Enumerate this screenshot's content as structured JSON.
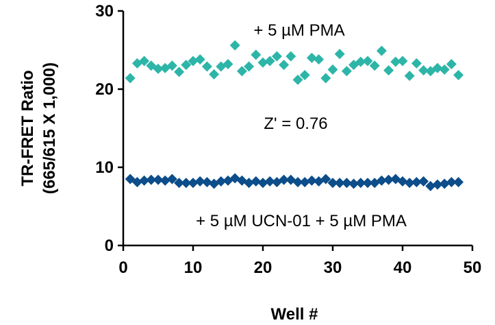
{
  "chart_data": {
    "type": "scatter",
    "xlabel": "Well #",
    "ylabel": [
      "TR-FRET Ratio",
      "(665/615 X 1,000)"
    ],
    "xlim": [
      0,
      50
    ],
    "ylim": [
      0,
      30
    ],
    "xticks": [
      "0",
      "10",
      "20",
      "30",
      "40",
      "50"
    ],
    "yticks": [
      "0",
      "10",
      "20",
      "30"
    ],
    "grid": false,
    "marker": "diamond",
    "annotations": {
      "top_label": "+ 5 µM  PMA",
      "z_prime": "Z' = 0.76",
      "bottom_label": "+ 5 µM UCN-01 + 5 µM  PMA"
    },
    "series": [
      {
        "color": "#2db5a8",
        "x": [
          1,
          2,
          3,
          4,
          5,
          6,
          7,
          8,
          9,
          10,
          11,
          12,
          13,
          14,
          15,
          16,
          17,
          18,
          19,
          20,
          21,
          22,
          23,
          24,
          25,
          26,
          27,
          28,
          29,
          30,
          31,
          32,
          33,
          34,
          35,
          36,
          37,
          38,
          39,
          40,
          41,
          42,
          43,
          44,
          45,
          46,
          47,
          48
        ],
        "y": [
          21.4,
          23.3,
          23.6,
          23.0,
          22.6,
          22.7,
          23.0,
          22.2,
          23.1,
          23.6,
          23.8,
          22.9,
          21.9,
          22.9,
          23.2,
          25.6,
          22.3,
          22.9,
          24.4,
          23.4,
          23.6,
          24.2,
          23.1,
          24.2,
          21.2,
          21.8,
          24.0,
          23.8,
          21.4,
          22.5,
          24.5,
          22.3,
          23.1,
          23.5,
          23.6,
          23.0,
          24.9,
          22.4,
          23.5,
          23.6,
          21.7,
          23.3,
          22.4,
          22.3,
          22.7,
          22.5,
          23.2,
          21.8
        ]
      },
      {
        "color": "#0c4d8a",
        "x": [
          1,
          2,
          3,
          4,
          5,
          6,
          7,
          8,
          9,
          10,
          11,
          12,
          13,
          14,
          15,
          16,
          17,
          18,
          19,
          20,
          21,
          22,
          23,
          24,
          25,
          26,
          27,
          28,
          29,
          30,
          31,
          32,
          33,
          34,
          35,
          36,
          37,
          38,
          39,
          40,
          41,
          42,
          43,
          44,
          45,
          46,
          47,
          48
        ],
        "y": [
          8.5,
          8.1,
          8.3,
          8.4,
          8.4,
          8.3,
          8.5,
          8.0,
          8.0,
          8.0,
          8.2,
          8.1,
          7.9,
          8.2,
          8.3,
          8.6,
          8.3,
          8.0,
          8.2,
          8.0,
          8.2,
          8.1,
          8.4,
          8.4,
          8.1,
          8.1,
          8.3,
          8.2,
          8.5,
          8.0,
          8.0,
          8.0,
          7.9,
          8.0,
          8.0,
          8.0,
          8.3,
          8.4,
          8.5,
          8.2,
          8.0,
          8.1,
          8.2,
          7.6,
          7.8,
          7.9,
          8.1,
          8.1
        ]
      }
    ]
  }
}
